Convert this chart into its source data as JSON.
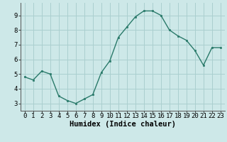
{
  "x": [
    0,
    1,
    2,
    3,
    4,
    5,
    6,
    7,
    8,
    9,
    10,
    11,
    12,
    13,
    14,
    15,
    16,
    17,
    18,
    19,
    20,
    21,
    22,
    23
  ],
  "y": [
    4.8,
    4.6,
    5.2,
    5.0,
    3.5,
    3.2,
    3.0,
    3.3,
    3.6,
    5.1,
    5.9,
    7.5,
    8.2,
    8.9,
    9.3,
    9.3,
    9.0,
    8.0,
    7.6,
    7.3,
    6.6,
    5.6,
    6.8,
    6.8
  ],
  "xlabel": "Humidex (Indice chaleur)",
  "bg_color": "#cde8e8",
  "grid_color": "#aacfcf",
  "line_color": "#2a7a6a",
  "marker_color": "#2a7a6a",
  "xlim_min": -0.5,
  "xlim_max": 23.5,
  "ylim_min": 2.5,
  "ylim_max": 9.85,
  "yticks": [
    3,
    4,
    5,
    6,
    7,
    8,
    9
  ],
  "xticks": [
    0,
    1,
    2,
    3,
    4,
    5,
    6,
    7,
    8,
    9,
    10,
    11,
    12,
    13,
    14,
    15,
    16,
    17,
    18,
    19,
    20,
    21,
    22,
    23
  ],
  "xlabel_fontsize": 7.5,
  "tick_fontsize": 6.5,
  "linewidth": 1.0,
  "markersize": 2.0
}
